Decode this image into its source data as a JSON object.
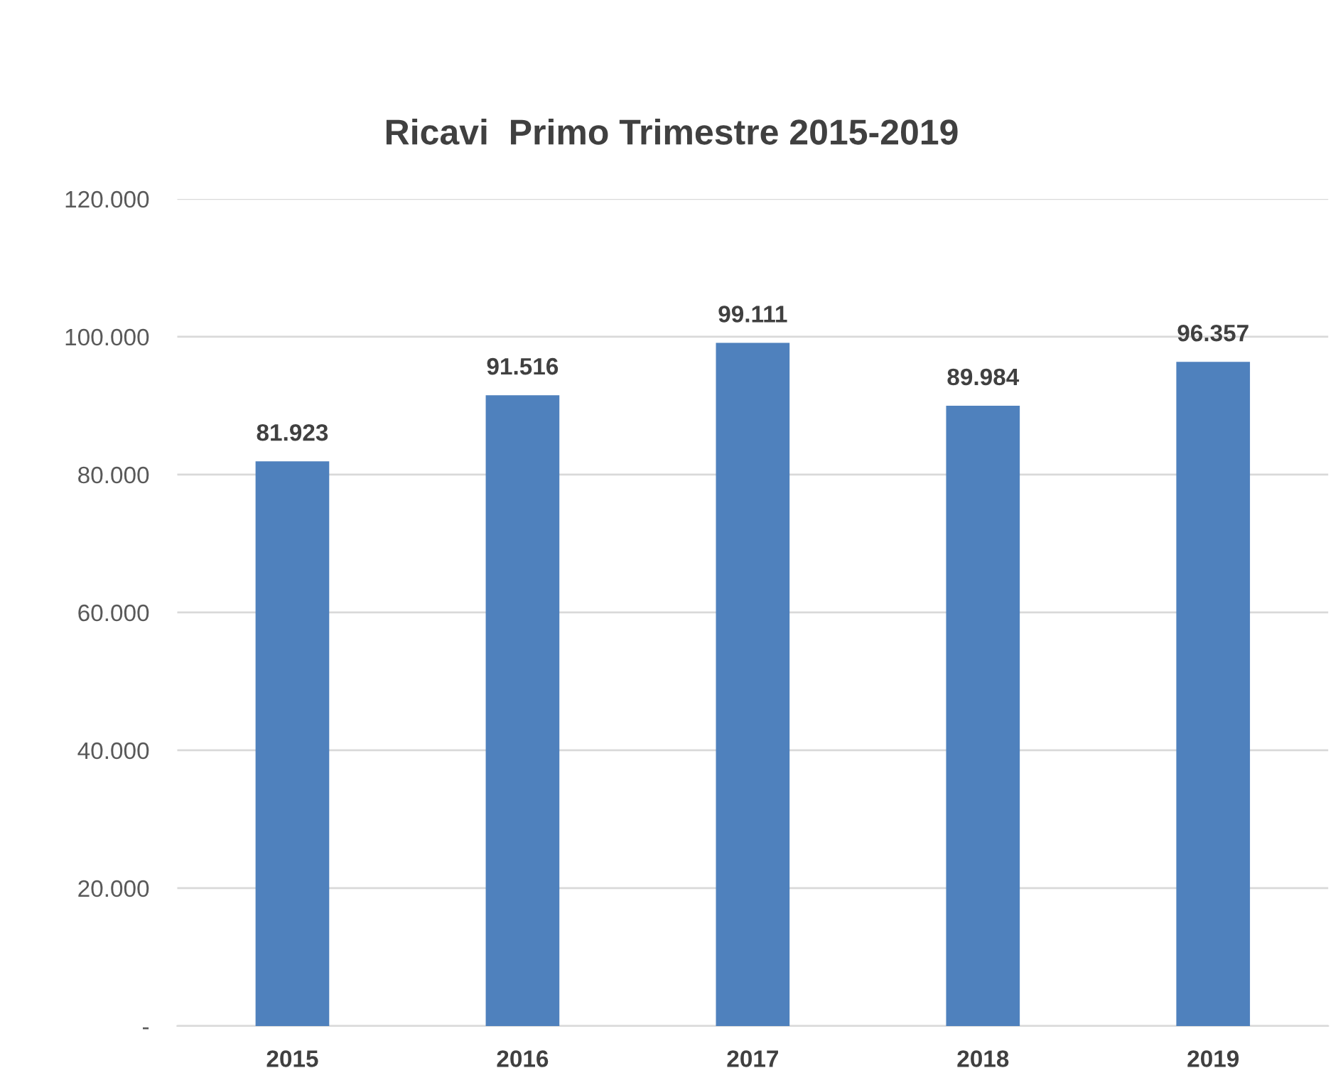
{
  "chart_data": {
    "type": "bar",
    "title": "Ricavi  Primo Trimestre 2015-2019",
    "categories": [
      "2015",
      "2016",
      "2017",
      "2018",
      "2019"
    ],
    "values": [
      81923,
      91516,
      99111,
      89984,
      96357
    ],
    "value_labels": [
      "81.923",
      "91.516",
      "99.111",
      "89.984",
      "96.357"
    ],
    "color": "#4f81bd",
    "ylim": [
      0,
      120000
    ],
    "yticks": [
      {
        "value": 0,
        "label": "-"
      },
      {
        "value": 20000,
        "label": "20.000"
      },
      {
        "value": 40000,
        "label": "40.000"
      },
      {
        "value": 60000,
        "label": "60.000"
      },
      {
        "value": 80000,
        "label": "80.000"
      },
      {
        "value": 100000,
        "label": "100.000"
      },
      {
        "value": 120000,
        "label": "120.000"
      }
    ],
    "grid": "y"
  }
}
